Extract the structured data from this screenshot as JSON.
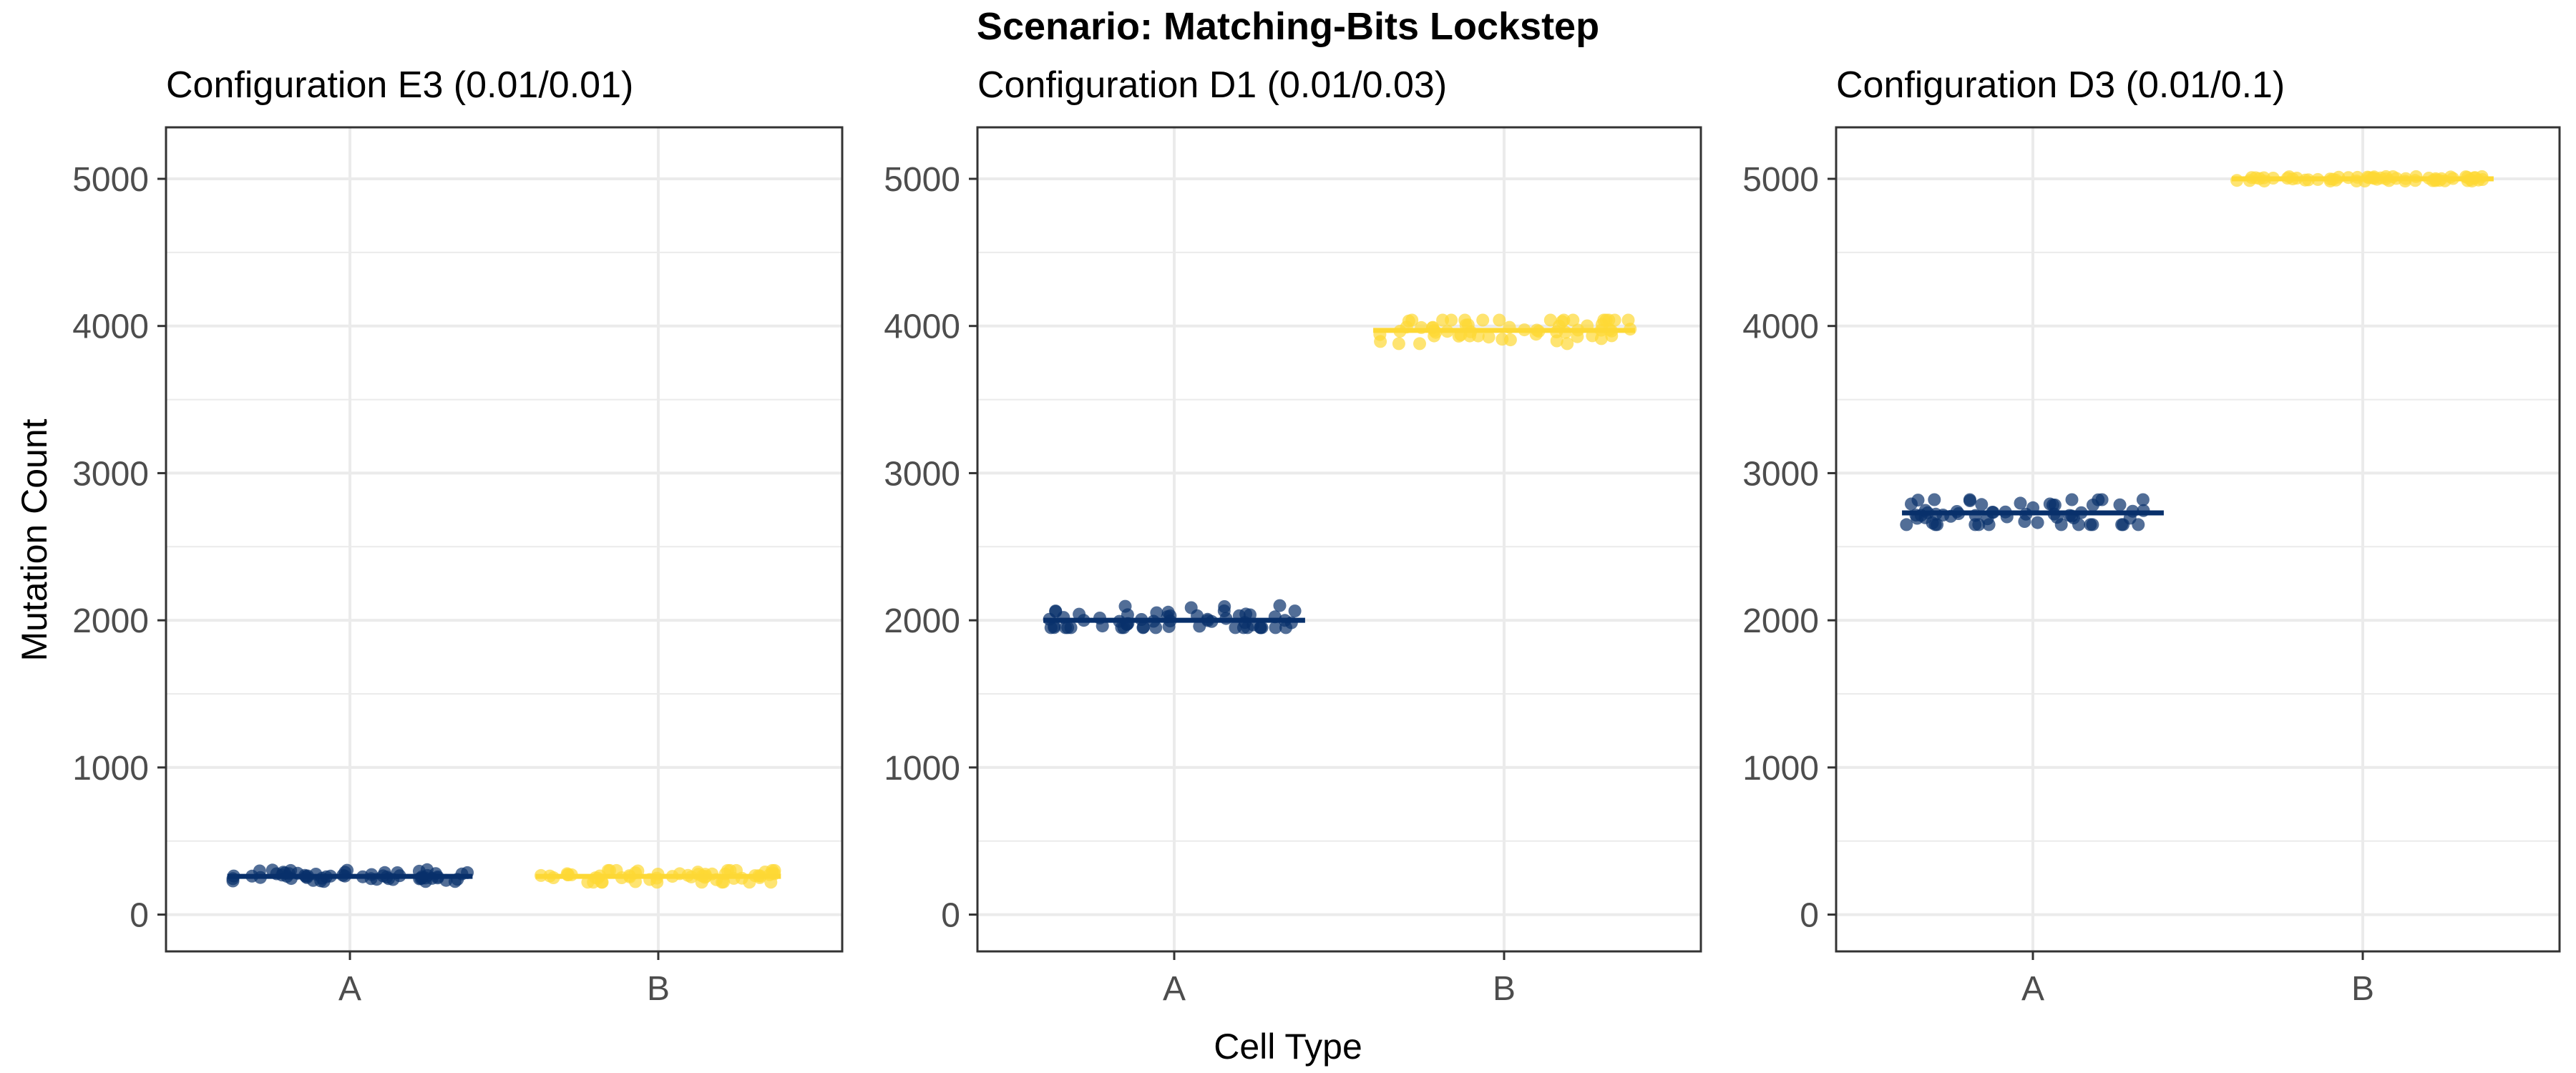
{
  "title": "Scenario: Matching-Bits Lockstep",
  "xlabel": "Cell Type",
  "ylabel": "Mutation Count",
  "colors": {
    "A": "#08306b",
    "B": "#fdd835",
    "grid": "#ebebeb",
    "panel_border": "#333333",
    "tick_text": "#4d4d4d"
  },
  "chart_data": [
    {
      "type": "scatter",
      "title": "Configuration E3 (0.01/0.01)",
      "categories": [
        "A",
        "B"
      ],
      "ylim": [
        -250,
        5350
      ],
      "yticks": [
        0,
        1000,
        2000,
        3000,
        4000,
        5000
      ],
      "grid": true,
      "series": [
        {
          "name": "A",
          "mean": 260,
          "min": 225,
          "max": 305
        },
        {
          "name": "B",
          "mean": 260,
          "min": 220,
          "max": 300
        }
      ]
    },
    {
      "type": "scatter",
      "title": "Configuration D1 (0.01/0.03)",
      "categories": [
        "A",
        "B"
      ],
      "ylim": [
        -250,
        5350
      ],
      "yticks": [
        0,
        1000,
        2000,
        3000,
        4000,
        5000
      ],
      "grid": true,
      "series": [
        {
          "name": "A",
          "mean": 2000,
          "min": 1950,
          "max": 2100
        },
        {
          "name": "B",
          "mean": 3970,
          "min": 3880,
          "max": 4040
        }
      ]
    },
    {
      "type": "scatter",
      "title": "Configuration D3 (0.01/0.1)",
      "categories": [
        "A",
        "B"
      ],
      "ylim": [
        -250,
        5350
      ],
      "yticks": [
        0,
        1000,
        2000,
        3000,
        4000,
        5000
      ],
      "grid": true,
      "series": [
        {
          "name": "A",
          "mean": 2730,
          "min": 2650,
          "max": 2820
        },
        {
          "name": "B",
          "mean": 5000,
          "min": 4985,
          "max": 5015
        }
      ]
    }
  ]
}
